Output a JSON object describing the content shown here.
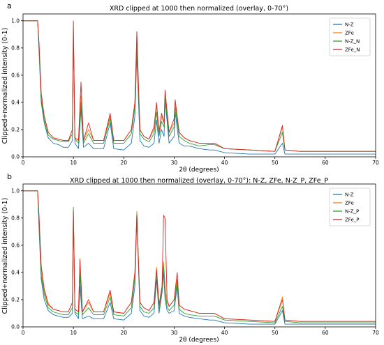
{
  "chart_data": [
    {
      "panel_label": "a",
      "type": "line",
      "title": "XRD clipped at 1000 then normalized (overlay, 0-70°)",
      "xlabel": "2θ (degrees)",
      "ylabel": "Clipped+normalized intensity (0-1)",
      "xlim": [
        0,
        70
      ],
      "ylim": [
        0,
        1.05
      ],
      "x_ticks": [
        0,
        10,
        20,
        30,
        40,
        50,
        60,
        70
      ],
      "y_ticks": [
        0.0,
        0.2,
        0.4,
        0.6,
        0.8,
        1.0
      ],
      "grid": false,
      "legend_position": "top-right",
      "series": [
        {
          "name": "N-Z",
          "color": "#1f77b4",
          "x": [
            0,
            2.9,
            3.2,
            3.6,
            4.2,
            5,
            6,
            7,
            8,
            9,
            9.8,
            10,
            10.3,
            11,
            11.5,
            12,
            13,
            14,
            16,
            17.3,
            18,
            20,
            21.5,
            22.2,
            22.6,
            23.2,
            24,
            25,
            26,
            26.5,
            27,
            27.5,
            28,
            28.2,
            29,
            30,
            30.2,
            31,
            32,
            33,
            35,
            37,
            38,
            40,
            45,
            50,
            51.5,
            52,
            55,
            60,
            65,
            70
          ],
          "y": [
            1.0,
            1.0,
            0.75,
            0.4,
            0.25,
            0.14,
            0.1,
            0.09,
            0.07,
            0.07,
            0.12,
            0.9,
            0.1,
            0.06,
            0.35,
            0.07,
            0.1,
            0.06,
            0.06,
            0.25,
            0.06,
            0.05,
            0.1,
            0.3,
            0.75,
            0.12,
            0.08,
            0.07,
            0.1,
            0.27,
            0.1,
            0.2,
            0.15,
            0.42,
            0.1,
            0.15,
            0.33,
            0.1,
            0.08,
            0.08,
            0.06,
            0.05,
            0.05,
            0.03,
            0.02,
            0.02,
            0.1,
            0.02,
            0.02,
            0.02,
            0.02,
            0.02
          ]
        },
        {
          "name": "ZFe",
          "color": "#ff7f0e",
          "x": [
            0,
            2.9,
            3.2,
            3.6,
            4.2,
            5,
            6,
            7,
            8,
            9,
            9.8,
            10,
            10.3,
            11,
            11.5,
            12,
            13,
            14,
            16,
            17.3,
            18,
            20,
            21.5,
            22.2,
            22.6,
            23.2,
            24,
            25,
            26,
            26.5,
            27,
            27.5,
            28,
            28.2,
            29,
            30,
            30.2,
            31,
            32,
            33,
            35,
            37,
            38,
            40,
            45,
            50,
            51.5,
            52,
            55,
            60,
            65,
            70
          ],
          "y": [
            1.0,
            1.0,
            0.8,
            0.45,
            0.3,
            0.18,
            0.14,
            0.13,
            0.12,
            0.12,
            0.2,
            0.95,
            0.14,
            0.12,
            0.45,
            0.12,
            0.2,
            0.12,
            0.12,
            0.3,
            0.12,
            0.12,
            0.2,
            0.4,
            0.85,
            0.2,
            0.15,
            0.13,
            0.2,
            0.38,
            0.18,
            0.3,
            0.25,
            0.45,
            0.18,
            0.25,
            0.4,
            0.18,
            0.14,
            0.12,
            0.1,
            0.1,
            0.1,
            0.06,
            0.05,
            0.04,
            0.22,
            0.05,
            0.04,
            0.04,
            0.04,
            0.04
          ]
        },
        {
          "name": "N-Z_N",
          "color": "#2ca02c",
          "x": [
            0,
            2.9,
            3.2,
            3.6,
            4.2,
            5,
            6,
            7,
            8,
            9,
            9.8,
            10,
            10.3,
            11,
            11.5,
            12,
            13,
            14,
            16,
            17.3,
            18,
            20,
            21.5,
            22.2,
            22.6,
            23.2,
            24,
            25,
            26,
            26.5,
            27,
            27.5,
            28,
            28.2,
            29,
            30,
            30.2,
            31,
            32,
            33,
            35,
            37,
            38,
            40,
            45,
            50,
            51.5,
            52,
            55,
            60,
            65,
            70
          ],
          "y": [
            1.0,
            1.0,
            0.78,
            0.42,
            0.27,
            0.16,
            0.13,
            0.12,
            0.11,
            0.11,
            0.17,
            0.92,
            0.13,
            0.1,
            0.4,
            0.1,
            0.17,
            0.1,
            0.1,
            0.28,
            0.1,
            0.1,
            0.17,
            0.36,
            0.8,
            0.17,
            0.13,
            0.11,
            0.17,
            0.33,
            0.15,
            0.26,
            0.22,
            0.43,
            0.15,
            0.22,
            0.37,
            0.15,
            0.12,
            0.1,
            0.08,
            0.09,
            0.09,
            0.06,
            0.05,
            0.04,
            0.18,
            0.05,
            0.04,
            0.04,
            0.04,
            0.04
          ]
        },
        {
          "name": "ZFe_N",
          "color": "#d62728",
          "x": [
            0,
            2.9,
            3.2,
            3.6,
            4.2,
            5,
            6,
            7,
            8,
            9,
            9.8,
            10,
            10.3,
            11,
            11.5,
            12,
            13,
            14,
            16,
            17.3,
            18,
            20,
            21.5,
            22.2,
            22.6,
            23.2,
            24,
            25,
            26,
            26.5,
            27,
            27.5,
            28,
            28.2,
            29,
            30,
            30.2,
            31,
            32,
            33,
            35,
            37,
            38,
            40,
            45,
            50,
            51.5,
            52,
            55,
            60,
            65,
            70
          ],
          "y": [
            1.0,
            1.0,
            0.82,
            0.47,
            0.3,
            0.18,
            0.14,
            0.13,
            0.12,
            0.12,
            0.2,
            1.0,
            0.14,
            0.12,
            0.55,
            0.12,
            0.25,
            0.12,
            0.12,
            0.32,
            0.12,
            0.12,
            0.2,
            0.4,
            0.92,
            0.2,
            0.15,
            0.13,
            0.22,
            0.4,
            0.18,
            0.32,
            0.25,
            0.49,
            0.18,
            0.28,
            0.42,
            0.18,
            0.14,
            0.12,
            0.1,
            0.1,
            0.1,
            0.06,
            0.05,
            0.04,
            0.23,
            0.05,
            0.04,
            0.04,
            0.04,
            0.04
          ]
        }
      ]
    },
    {
      "panel_label": "b",
      "type": "line",
      "title": "XRD clipped at 1000 then normalized (overlay, 0-70°): N-Z, ZFe, N-Z_P, ZFe_P",
      "xlabel": "2θ (degrees)",
      "ylabel": "Clipped+normalized intensity (0-1)",
      "xlim": [
        0,
        70
      ],
      "ylim": [
        0,
        1.05
      ],
      "x_ticks": [
        0,
        10,
        20,
        30,
        40,
        50,
        60,
        70
      ],
      "y_ticks": [
        0.0,
        0.2,
        0.4,
        0.6,
        0.8,
        1.0
      ],
      "grid": false,
      "legend_position": "top-right",
      "series": [
        {
          "name": "N-Z",
          "color": "#1f77b4",
          "x": [
            0,
            2.9,
            3.2,
            3.6,
            4.2,
            5,
            6,
            7,
            8,
            9,
            9.8,
            10,
            10.3,
            11,
            11.3,
            11.8,
            13,
            14,
            16,
            17.3,
            18,
            20,
            21.5,
            22.2,
            22.6,
            23.2,
            24,
            25,
            26,
            26.5,
            27,
            27.6,
            27.9,
            28.2,
            28.6,
            29,
            30,
            30.6,
            31,
            32,
            33,
            35,
            37,
            38,
            40,
            45,
            50,
            51.5,
            52,
            55,
            60,
            65,
            70
          ],
          "y": [
            1.0,
            1.0,
            0.7,
            0.35,
            0.2,
            0.12,
            0.09,
            0.08,
            0.07,
            0.07,
            0.1,
            0.8,
            0.1,
            0.06,
            0.3,
            0.06,
            0.08,
            0.06,
            0.06,
            0.18,
            0.06,
            0.05,
            0.1,
            0.3,
            0.8,
            0.12,
            0.08,
            0.07,
            0.1,
            0.35,
            0.1,
            0.25,
            0.4,
            0.2,
            0.12,
            0.1,
            0.12,
            0.3,
            0.1,
            0.08,
            0.07,
            0.06,
            0.05,
            0.05,
            0.03,
            0.02,
            0.02,
            0.12,
            0.02,
            0.02,
            0.02,
            0.02,
            0.02
          ]
        },
        {
          "name": "ZFe",
          "color": "#ff7f0e",
          "x": [
            0,
            2.9,
            3.2,
            3.6,
            4.2,
            5,
            6,
            7,
            8,
            9,
            9.8,
            10,
            10.3,
            11,
            11.3,
            11.8,
            13,
            14,
            16,
            17.3,
            18,
            20,
            21.5,
            22.2,
            22.6,
            23.2,
            24,
            25,
            26,
            26.5,
            27,
            27.6,
            27.9,
            28.2,
            28.6,
            29,
            30,
            30.6,
            31,
            32,
            33,
            35,
            37,
            38,
            40,
            45,
            50,
            51.5,
            52,
            55,
            60,
            65,
            70
          ],
          "y": [
            1.0,
            1.0,
            0.78,
            0.42,
            0.26,
            0.16,
            0.13,
            0.12,
            0.11,
            0.11,
            0.18,
            0.86,
            0.13,
            0.11,
            0.45,
            0.11,
            0.18,
            0.11,
            0.11,
            0.25,
            0.11,
            0.1,
            0.18,
            0.4,
            0.85,
            0.18,
            0.14,
            0.12,
            0.18,
            0.44,
            0.16,
            0.3,
            0.48,
            0.3,
            0.18,
            0.15,
            0.2,
            0.35,
            0.16,
            0.13,
            0.12,
            0.1,
            0.1,
            0.1,
            0.06,
            0.05,
            0.04,
            0.22,
            0.05,
            0.04,
            0.04,
            0.04,
            0.04
          ]
        },
        {
          "name": "N-Z_P",
          "color": "#2ca02c",
          "x": [
            0,
            2.9,
            3.2,
            3.6,
            4.2,
            5,
            6,
            7,
            8,
            9,
            9.8,
            10,
            10.3,
            11,
            11.3,
            11.8,
            13,
            14,
            16,
            17.3,
            18,
            20,
            21.5,
            22.2,
            22.6,
            23.2,
            24,
            25,
            26,
            26.5,
            27,
            27.6,
            27.9,
            28.2,
            28.6,
            29,
            30,
            30.6,
            31,
            32,
            33,
            35,
            37,
            38,
            40,
            45,
            50,
            51.5,
            52,
            55,
            60,
            65,
            70
          ],
          "y": [
            1.0,
            1.0,
            0.74,
            0.38,
            0.24,
            0.14,
            0.11,
            0.1,
            0.09,
            0.09,
            0.14,
            0.88,
            0.11,
            0.09,
            0.38,
            0.09,
            0.14,
            0.09,
            0.09,
            0.22,
            0.09,
            0.08,
            0.14,
            0.36,
            0.83,
            0.15,
            0.11,
            0.1,
            0.14,
            0.4,
            0.13,
            0.28,
            0.45,
            0.25,
            0.15,
            0.12,
            0.16,
            0.33,
            0.13,
            0.1,
            0.09,
            0.08,
            0.08,
            0.08,
            0.05,
            0.04,
            0.03,
            0.15,
            0.04,
            0.03,
            0.03,
            0.03,
            0.03
          ]
        },
        {
          "name": "ZFe_P",
          "color": "#d62728",
          "x": [
            0,
            2.9,
            3.2,
            3.6,
            4.2,
            5,
            6,
            7,
            8,
            9,
            9.8,
            10,
            10.3,
            11,
            11.3,
            11.8,
            13,
            14,
            16,
            17.3,
            18,
            20,
            21.5,
            22.2,
            22.6,
            23.2,
            24,
            25,
            26,
            26.5,
            27,
            27.6,
            27.9,
            28.2,
            28.6,
            29,
            30,
            30.6,
            31,
            32,
            33,
            35,
            37,
            38,
            40,
            45,
            50,
            51.5,
            52,
            55,
            60,
            65,
            70
          ],
          "y": [
            1.0,
            1.0,
            0.8,
            0.45,
            0.28,
            0.17,
            0.13,
            0.12,
            0.11,
            0.11,
            0.18,
            0.85,
            0.13,
            0.11,
            0.5,
            0.11,
            0.2,
            0.11,
            0.11,
            0.27,
            0.11,
            0.1,
            0.18,
            0.4,
            0.82,
            0.18,
            0.14,
            0.12,
            0.18,
            0.42,
            0.16,
            0.3,
            0.82,
            0.8,
            0.2,
            0.15,
            0.2,
            0.4,
            0.16,
            0.13,
            0.12,
            0.1,
            0.1,
            0.1,
            0.06,
            0.05,
            0.04,
            0.2,
            0.05,
            0.04,
            0.04,
            0.04,
            0.04
          ]
        }
      ]
    }
  ]
}
